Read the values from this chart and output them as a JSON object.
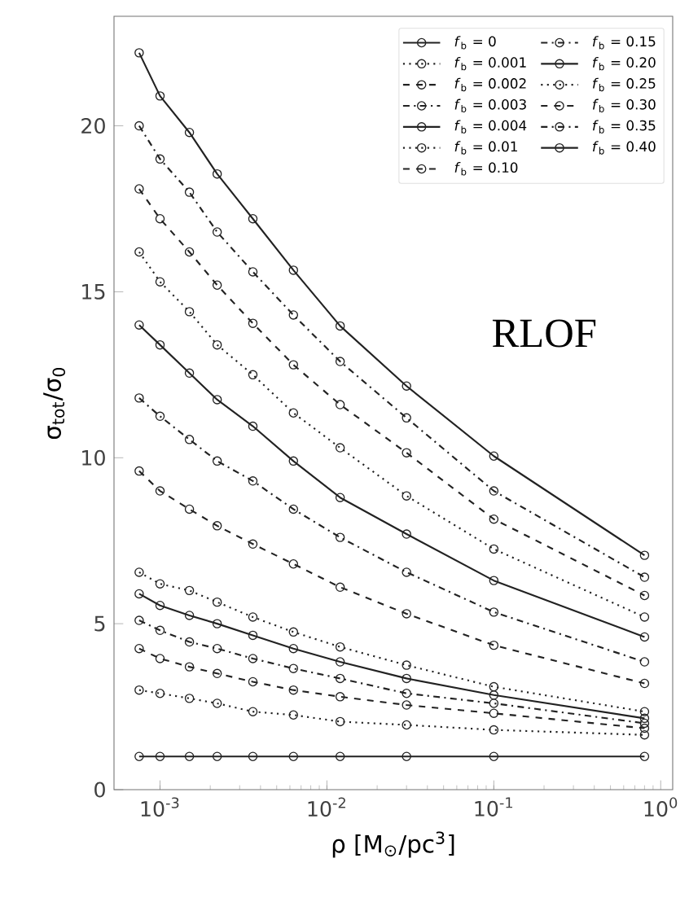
{
  "chart_data": {
    "type": "line",
    "xlabel": "ρ [M$_{⊙}$/pc$^{3}$]",
    "ylabel": "σ$_{tot}$/σ$_{0}$",
    "annotations": [
      "RLOF"
    ],
    "x": [
      0.00075,
      0.001,
      0.0015,
      0.0022,
      0.0036,
      0.0063,
      0.012,
      0.03,
      0.1,
      0.8
    ],
    "xlim": [
      0.00053,
      1.18
    ],
    "ylim": [
      0,
      23.3
    ],
    "log": "x",
    "marker": "circle",
    "legend": "top right",
    "xticks": [
      {
        "value": 0.001,
        "label": "10$^{-3}$"
      },
      {
        "value": 0.01,
        "label": "10$^{-2}$"
      },
      {
        "value": 0.1,
        "label": "10$^{-1}$"
      },
      {
        "value": 1,
        "label": "10$^{0}$"
      }
    ],
    "yticks": [
      0,
      5,
      10,
      15,
      20
    ],
    "series": [
      {
        "name": "*f*$_{b}$ = 0",
        "color": "#222222",
        "line_style": "solid",
        "values": [
          1,
          1,
          1,
          1,
          1,
          1,
          1,
          1,
          1,
          1
        ]
      },
      {
        "name": "*f*$_{b}$ = 0.001",
        "color": "#222222",
        "line_style": "dotted",
        "values": [
          3.0,
          2.9,
          2.75,
          2.6,
          2.35,
          2.25,
          2.05,
          1.95,
          1.8,
          1.65
        ]
      },
      {
        "name": "*f*$_{b}$ = 0.002",
        "color": "#222222",
        "line_style": "dashed",
        "values": [
          4.25,
          3.95,
          3.7,
          3.5,
          3.25,
          3.0,
          2.8,
          2.55,
          2.3,
          1.85
        ]
      },
      {
        "name": "*f*$_{b}$ = 0.003",
        "color": "#222222",
        "line_style": "dashdot",
        "values": [
          5.1,
          4.8,
          4.45,
          4.25,
          3.95,
          3.65,
          3.35,
          2.9,
          2.6,
          2.0
        ]
      },
      {
        "name": "*f*$_{b}$ = 0.004",
        "color": "#222222",
        "line_style": "solid",
        "values": [
          5.9,
          5.55,
          5.25,
          5.0,
          4.65,
          4.25,
          3.85,
          3.35,
          2.85,
          2.15
        ]
      },
      {
        "name": "*f*$_{b}$ = 0.01",
        "color": "#222222",
        "line_style": "dotted",
        "values": [
          6.55,
          6.2,
          6.0,
          5.65,
          5.2,
          4.75,
          4.3,
          3.75,
          3.1,
          2.35
        ]
      },
      {
        "name": "*f*$_{b}$ = 0.10",
        "color": "#222222",
        "line_style": "dashed",
        "values": [
          9.6,
          9.0,
          8.45,
          7.95,
          7.4,
          6.8,
          6.1,
          5.3,
          4.35,
          3.2
        ]
      },
      {
        "name": "*f*$_{b}$ = 0.15",
        "color": "#222222",
        "line_style": "dashdot",
        "values": [
          11.8,
          11.25,
          10.55,
          9.9,
          9.3,
          8.45,
          7.6,
          6.55,
          5.35,
          3.85
        ]
      },
      {
        "name": "*f*$_{b}$ = 0.20",
        "color": "#222222",
        "line_style": "solid",
        "values": [
          14.0,
          13.4,
          12.55,
          11.75,
          10.95,
          9.9,
          8.8,
          7.7,
          6.3,
          4.6
        ]
      },
      {
        "name": "*f*$_{b}$ = 0.25",
        "color": "#222222",
        "line_style": "dotted",
        "values": [
          16.2,
          15.3,
          14.4,
          13.4,
          12.5,
          11.35,
          10.3,
          8.85,
          7.25,
          5.2
        ]
      },
      {
        "name": "*f*$_{b}$ = 0.30",
        "color": "#222222",
        "line_style": "dashed",
        "values": [
          18.1,
          17.2,
          16.2,
          15.2,
          14.05,
          12.8,
          11.6,
          10.15,
          8.15,
          5.85
        ]
      },
      {
        "name": "*f*$_{b}$ = 0.35",
        "color": "#222222",
        "line_style": "dashdot",
        "values": [
          20.0,
          19.0,
          18.0,
          16.8,
          15.6,
          14.3,
          12.9,
          11.2,
          9.0,
          6.4
        ]
      },
      {
        "name": "*f*$_{b}$ = 0.40",
        "color": "#222222",
        "line_style": "solid",
        "values": [
          22.2,
          20.9,
          19.8,
          18.55,
          17.2,
          15.65,
          13.97,
          12.16,
          10.05,
          7.06
        ]
      }
    ]
  }
}
